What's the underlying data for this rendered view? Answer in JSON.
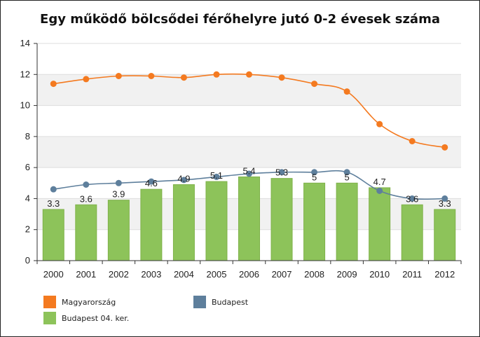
{
  "chart_data": {
    "type": "bar+line",
    "title": "Egy működő bölcsődei férőhelyre jutó 0-2 évesek száma",
    "xlabel": "",
    "ylabel": "",
    "categories": [
      "2000",
      "2001",
      "2002",
      "2003",
      "2004",
      "2005",
      "2006",
      "2007",
      "2008",
      "2009",
      "2010",
      "2011",
      "2012"
    ],
    "ylim": [
      0,
      14
    ],
    "yticks": [
      0,
      2,
      4,
      6,
      8,
      10,
      12,
      14
    ],
    "grid": "horizontal bands",
    "legend_position": "bottom",
    "series": [
      {
        "name": "Magyarország",
        "kind": "line",
        "color": "#f47a20",
        "values": [
          11.4,
          11.7,
          11.9,
          11.9,
          11.8,
          12.0,
          12.0,
          11.8,
          11.4,
          10.9,
          8.8,
          7.7,
          7.3
        ]
      },
      {
        "name": "Budapest",
        "kind": "line",
        "color": "#5e7f9c",
        "values": [
          4.6,
          4.9,
          5.0,
          5.1,
          5.2,
          5.4,
          5.6,
          5.7,
          5.7,
          5.7,
          4.5,
          4.0,
          4.0
        ]
      },
      {
        "name": "Budapest 04. ker.",
        "kind": "bar",
        "color": "#8dc35a",
        "values": [
          3.3,
          3.6,
          3.9,
          4.6,
          4.9,
          5.1,
          5.4,
          5.3,
          5.0,
          5.0,
          4.7,
          3.6,
          3.3
        ],
        "labels": [
          "3.3",
          "3.6",
          "3.9",
          "4.6",
          "4.9",
          "5.1",
          "5.4",
          "5.3",
          "5",
          "5",
          "4.7",
          "3.6",
          "3.3"
        ]
      }
    ]
  }
}
